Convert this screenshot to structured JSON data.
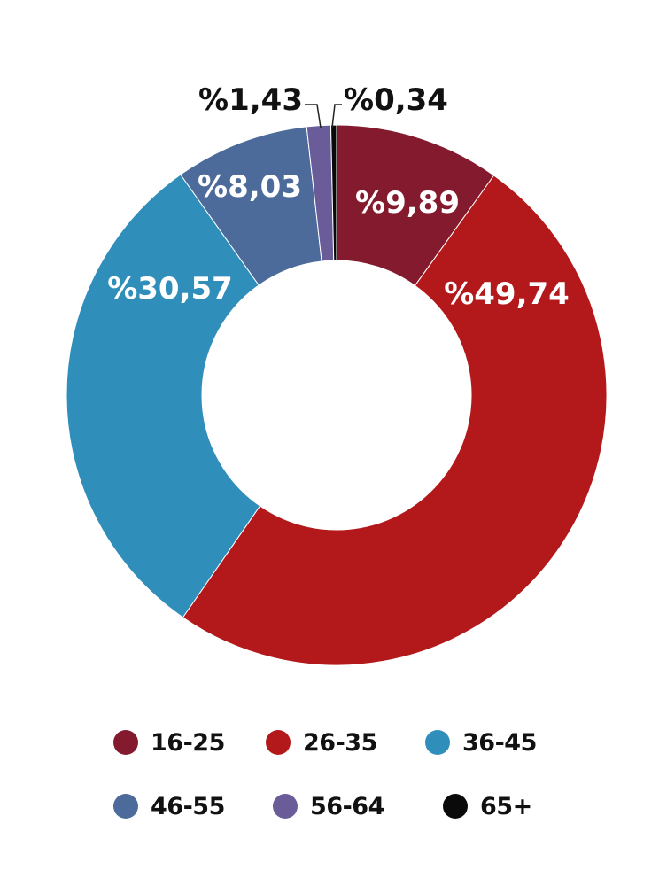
{
  "chart_data": {
    "type": "pie",
    "variant": "donut",
    "slices": [
      {
        "category": "16-25",
        "value": 9.89,
        "label": "%9,89",
        "color": "#841a2e"
      },
      {
        "category": "26-35",
        "value": 49.74,
        "label": "%49,74",
        "color": "#b3191b"
      },
      {
        "category": "36-45",
        "value": 30.57,
        "label": "%30,57",
        "color": "#308eba"
      },
      {
        "category": "46-55",
        "value": 8.03,
        "label": "%8,03",
        "color": "#4c6b9a"
      },
      {
        "category": "56-64",
        "value": 1.43,
        "label": "%1,43",
        "color": "#6a5b99"
      },
      {
        "category": "65+",
        "value": 0.34,
        "label": "%0,34",
        "color": "#0a0a0a"
      }
    ],
    "start_angle_deg": 0,
    "direction": "clockwise",
    "legend_position": "bottom",
    "title": "",
    "xlabel": "",
    "ylabel": ""
  }
}
